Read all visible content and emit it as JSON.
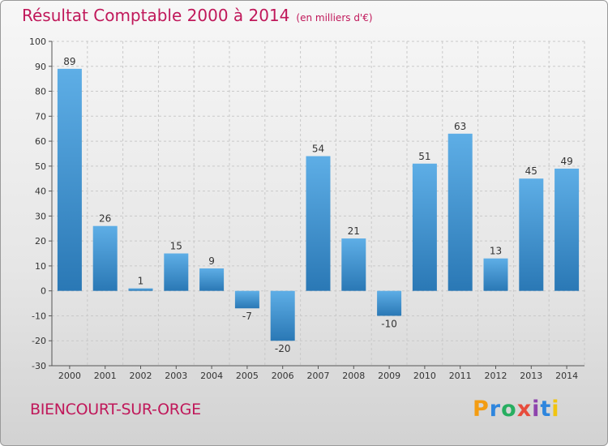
{
  "header": {
    "title": "Résultat Comptable 2000 à 2014",
    "subtitle": "(en milliers d'€)"
  },
  "footer": {
    "city": "BIENCOURT-SUR-ORGE",
    "logo": "Proxiti"
  },
  "colors": {
    "title": "#c0185a",
    "bar_light": "#5eaee6",
    "bar_dark": "#2a78b5"
  },
  "chart_data": {
    "type": "bar",
    "title": "Résultat Comptable 2000 à 2014",
    "subtitle": "(en milliers d'€)",
    "categories": [
      "2000",
      "2001",
      "2002",
      "2003",
      "2004",
      "2005",
      "2006",
      "2007",
      "2008",
      "2009",
      "2010",
      "2011",
      "2012",
      "2013",
      "2014"
    ],
    "values": [
      89,
      26,
      1,
      15,
      9,
      -7,
      -20,
      54,
      21,
      -10,
      51,
      63,
      13,
      45,
      49
    ],
    "ylim": [
      -30,
      100
    ],
    "yticks": [
      -30,
      -20,
      -10,
      0,
      10,
      20,
      30,
      40,
      50,
      60,
      70,
      80,
      90,
      100
    ],
    "grid": true
  }
}
